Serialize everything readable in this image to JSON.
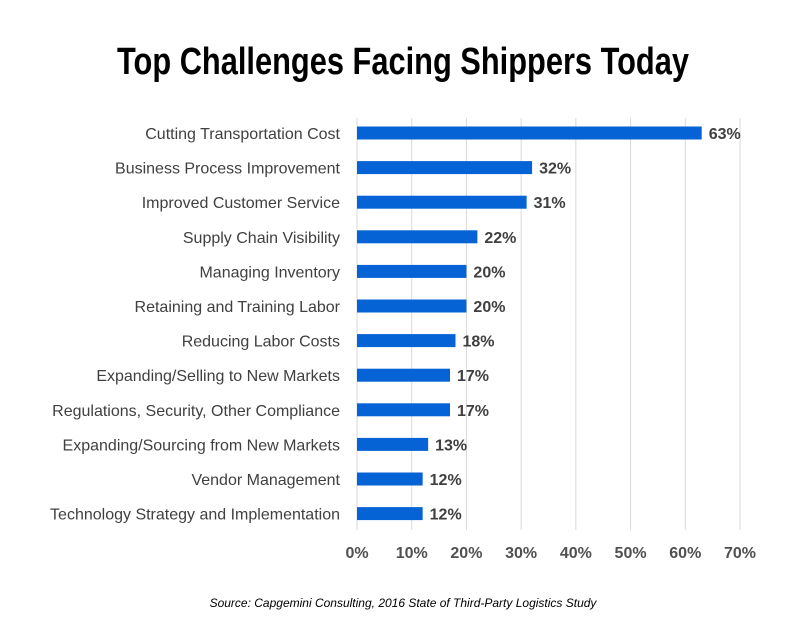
{
  "chart_data": {
    "type": "bar",
    "orientation": "horizontal",
    "title": "Top Challenges Facing Shippers Today",
    "source": "Source: Capgemini Consulting, 2016 State of Third-Party Logistics Study",
    "categories": [
      "Cutting Transportation Cost",
      "Business Process Improvement",
      "Improved Customer Service",
      "Supply Chain Visibility",
      "Managing Inventory",
      "Retaining and Training Labor",
      "Reducing Labor Costs",
      "Expanding/Selling to New Markets",
      "Regulations, Security, Other Compliance",
      "Expanding/Sourcing from New Markets",
      "Vendor Management",
      "Technology Strategy and Implementation"
    ],
    "values": [
      63,
      32,
      31,
      22,
      20,
      20,
      18,
      17,
      17,
      13,
      12,
      12
    ],
    "data_labels": [
      "63%",
      "32%",
      "31%",
      "22%",
      "20%",
      "20%",
      "18%",
      "17%",
      "17%",
      "13%",
      "12%",
      "12%"
    ],
    "xlim": [
      0,
      70
    ],
    "ticks": [
      "0%",
      "10%",
      "20%",
      "30%",
      "40%",
      "50%",
      "60%",
      "70%"
    ],
    "grid": true,
    "bar_color": "#0563d6",
    "grid_color": "#d9d9d9"
  }
}
